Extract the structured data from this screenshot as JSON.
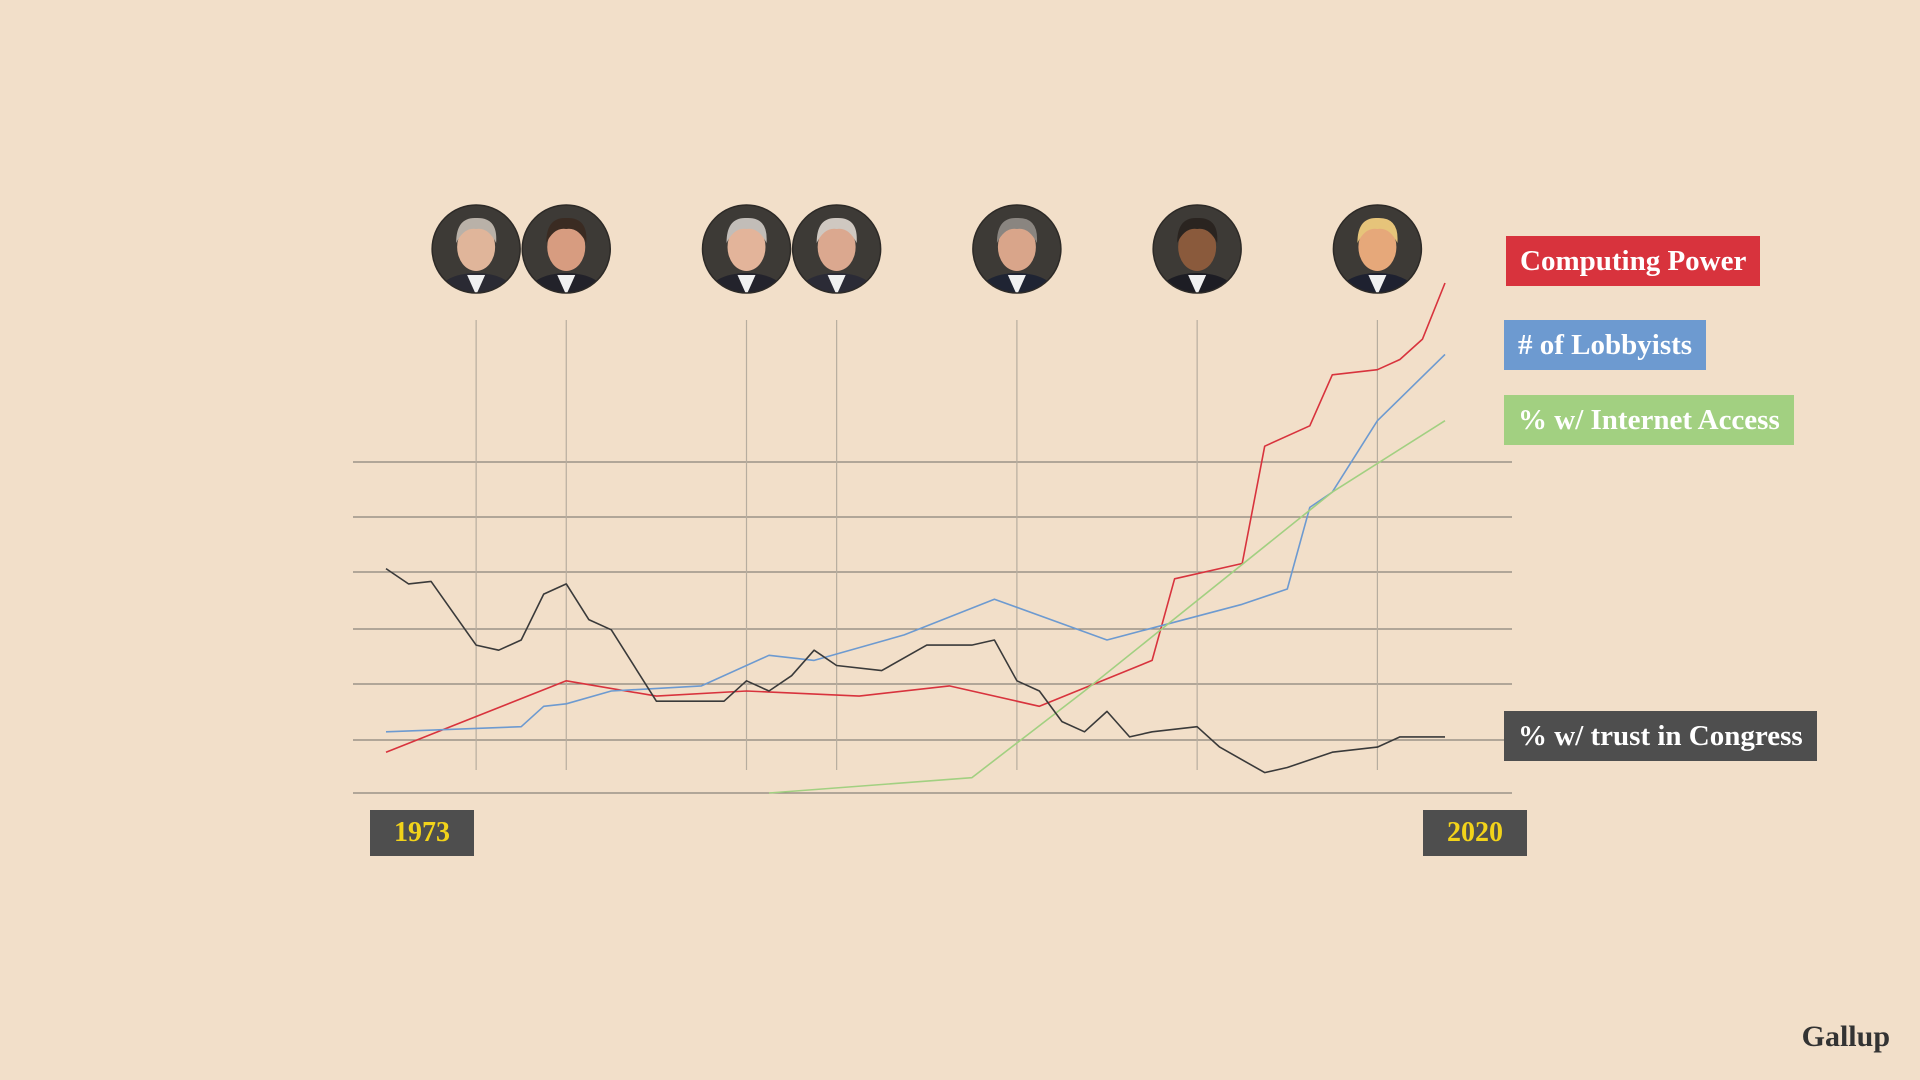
{
  "chart_data": {
    "type": "line",
    "title": "",
    "xlabel": "",
    "ylabel": "",
    "xlim": [
      1973,
      2020
    ],
    "ylim": [
      0,
      100
    ],
    "grid": true,
    "start_label": "1973",
    "end_label": "2020",
    "president_years": [
      1977,
      1981,
      1989,
      1993,
      2001,
      2009,
      2017
    ],
    "presidents": [
      {
        "icon": "president-portrait-1-icon",
        "skin": "#e0b59a",
        "hair": "#b9b1a8",
        "suit": "#2a2a33"
      },
      {
        "icon": "president-portrait-2-icon",
        "skin": "#d79c80",
        "hair": "#3a2b22",
        "suit": "#22222a"
      },
      {
        "icon": "president-portrait-3-icon",
        "skin": "#e3b49a",
        "hair": "#c2bdb8",
        "suit": "#23232c"
      },
      {
        "icon": "president-portrait-4-icon",
        "skin": "#dba88f",
        "hair": "#cfc8c1",
        "suit": "#2b2b36"
      },
      {
        "icon": "president-portrait-5-icon",
        "skin": "#d9a58a",
        "hair": "#8a8580",
        "suit": "#1f2433"
      },
      {
        "icon": "president-portrait-6-icon",
        "skin": "#8a5a3c",
        "hair": "#2a2420",
        "suit": "#1d1d24"
      },
      {
        "icon": "president-portrait-7-icon",
        "skin": "#e6a87a",
        "hair": "#e6c47a",
        "suit": "#1e2130"
      }
    ],
    "series": [
      {
        "name": "Computing Power",
        "color": "#d8333d",
        "label_color": "#ffffff",
        "x": [
          1973,
          1981,
          1985,
          1989,
          1994,
          1998,
          2002,
          2007,
          2008,
          2011,
          2012,
          2014,
          2015,
          2017,
          2018,
          2019,
          2020
        ],
        "y": [
          8,
          22,
          19,
          20,
          19,
          21,
          17,
          26,
          42,
          45,
          68,
          72,
          82,
          83,
          85,
          89,
          100
        ]
      },
      {
        "name": "# of Lobbyists",
        "color": "#6d9ad0",
        "label_color": "#ffffff",
        "x": [
          1973,
          1979,
          1980,
          1981,
          1983,
          1987,
          1990,
          1992,
          1996,
          2000,
          2005,
          2011,
          2013,
          2014,
          2015,
          2017,
          2020
        ],
        "y": [
          12,
          13,
          17,
          17.5,
          20,
          21,
          27,
          26,
          31,
          38,
          30,
          37,
          40,
          56,
          59,
          73,
          86
        ]
      },
      {
        "name": "% w/ Internet Access",
        "color": "#a2d081",
        "label_color": "#ffffff",
        "x": [
          1990,
          1999,
          2004,
          2015,
          2020
        ],
        "y": [
          0,
          3,
          20,
          59,
          73
        ]
      },
      {
        "name": "% w/ trust in Congress",
        "color": "#3a3a3a",
        "label_color": "#ffffff",
        "x": [
          1973,
          1974,
          1975,
          1977,
          1978,
          1979,
          1980,
          1981,
          1982,
          1983,
          1985,
          1987,
          1988,
          1989,
          1990,
          1991,
          1992,
          1993,
          1995,
          1997,
          1999,
          2000,
          2001,
          2002,
          2003,
          2004,
          2005,
          2006,
          2007,
          2009,
          2010,
          2012,
          2013,
          2015,
          2017,
          2018,
          2019,
          2020
        ],
        "y": [
          44,
          41,
          41.5,
          29,
          28,
          30,
          39,
          41,
          34,
          32,
          18,
          18,
          18,
          22,
          20,
          23,
          28,
          25,
          24,
          29,
          29,
          30,
          22,
          20,
          14,
          12,
          16,
          11,
          12,
          13,
          9,
          4,
          5,
          8,
          9,
          11,
          11,
          11
        ]
      }
    ],
    "source": "Gallup"
  }
}
